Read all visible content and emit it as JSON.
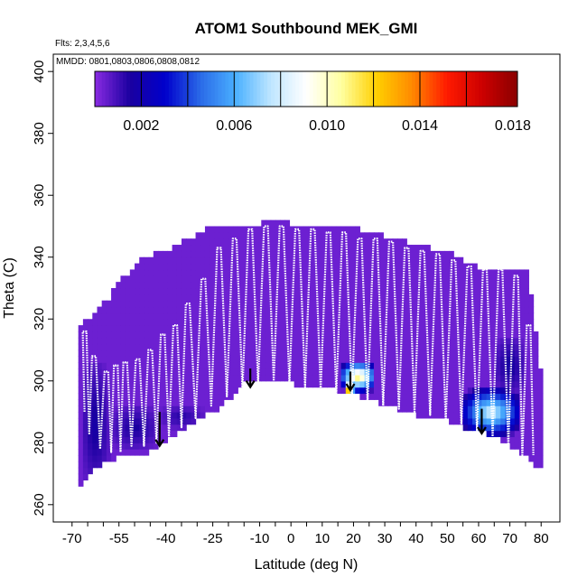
{
  "chart_data": {
    "type": "heatmap",
    "title": "ATOM1 Southbound MEK_GMI",
    "notes": [
      "Flts: 2,3,4,5,6",
      "MMDD: 0801,0803,0806,0808,0812"
    ],
    "xlabel": "Latitude (deg N)",
    "ylabel": "Theta (C)",
    "xlim": [
      -70,
      80
    ],
    "ylim": [
      260,
      400
    ],
    "x_tick_labels": [
      "-70",
      "-55",
      "-40",
      "-25",
      "-10",
      "0",
      "10",
      "20",
      "30",
      "40",
      "50",
      "60",
      "70",
      "80"
    ],
    "x_tick_values": [
      -70,
      -55,
      -40,
      -25,
      -10,
      0,
      10,
      20,
      30,
      40,
      50,
      60,
      70,
      80
    ],
    "y_ticks": [
      260,
      280,
      300,
      320,
      340,
      360,
      380,
      400
    ],
    "colorbar": {
      "labels": [
        "0.002",
        "0.006",
        "0.010",
        "0.014",
        "0.018"
      ],
      "label_values": [
        0.002,
        0.006,
        0.01,
        0.014,
        0.018
      ],
      "range": [
        0.0,
        0.0182
      ],
      "stops": [
        "#8a2be2",
        "#1a00a0",
        "#0000cc",
        "#2a6ae8",
        "#4ab0ff",
        "#bfe6ff",
        "#ffffff",
        "#ffffa0",
        "#ffd000",
        "#ff8a00",
        "#ff1a00",
        "#cc0000",
        "#8a0000"
      ]
    },
    "background_value": 0.0004,
    "domain_top": [
      [
        -68,
        316
      ],
      [
        -66,
        318
      ],
      [
        -62,
        322
      ],
      [
        -58,
        326
      ],
      [
        -55,
        331
      ],
      [
        -50,
        336
      ],
      [
        -47,
        339
      ],
      [
        -44,
        340
      ],
      [
        -40,
        341
      ],
      [
        -36,
        343
      ],
      [
        -33,
        345
      ],
      [
        -25,
        349
      ],
      [
        -10,
        350
      ],
      [
        -5,
        351
      ],
      [
        0,
        350
      ],
      [
        10,
        349
      ],
      [
        22,
        348
      ],
      [
        30,
        346
      ],
      [
        40,
        343
      ],
      [
        50,
        341
      ],
      [
        55,
        338
      ],
      [
        60,
        336
      ],
      [
        70,
        335
      ],
      [
        76,
        334
      ],
      [
        80,
        300
      ],
      [
        80,
        290
      ]
    ],
    "domain_bottom": [
      [
        -68,
        265
      ],
      [
        -62,
        272
      ],
      [
        -55,
        276
      ],
      [
        -45,
        277
      ],
      [
        -38,
        282
      ],
      [
        -30,
        287
      ],
      [
        -22,
        292
      ],
      [
        -15,
        299
      ],
      [
        -5,
        301
      ],
      [
        5,
        298
      ],
      [
        15,
        297
      ],
      [
        22,
        295
      ],
      [
        30,
        292
      ],
      [
        40,
        289
      ],
      [
        50,
        287
      ],
      [
        58,
        284
      ],
      [
        63,
        283
      ],
      [
        68,
        280
      ],
      [
        74,
        276
      ],
      [
        78,
        273
      ],
      [
        80,
        272
      ]
    ],
    "enhanced_regions": [
      {
        "lat": [
          -67,
          -58
        ],
        "theta": [
          266,
          305
        ],
        "value": 0.0018
      },
      {
        "lat": [
          -58,
          -42
        ],
        "theta": [
          278,
          292
        ],
        "value": 0.0016
      },
      {
        "lat": [
          -42,
          -28
        ],
        "theta": [
          285,
          292
        ],
        "value": 0.0014
      },
      {
        "lat": [
          16,
          27
        ],
        "theta": [
          297,
          306
        ],
        "value": 0.0118
      },
      {
        "lat": [
          17,
          20
        ],
        "theta": [
          295,
          300
        ],
        "value": 0.015
      },
      {
        "lat": [
          55,
          73
        ],
        "theta": [
          283,
          297
        ],
        "value": 0.0085
      },
      {
        "lat": [
          59,
          63
        ],
        "theta": [
          288,
          292
        ],
        "value": 0.011
      },
      {
        "lat": [
          65,
          75
        ],
        "theta": [
          296,
          314
        ],
        "value": 0.0018
      }
    ],
    "profiles": [
      {
        "lat": -66,
        "low": 290,
        "high": 316
      },
      {
        "lat": -63,
        "low": 283,
        "high": 308
      },
      {
        "lat": -59,
        "low": 278,
        "high": 303
      },
      {
        "lat": -56,
        "low": 277,
        "high": 305
      },
      {
        "lat": -53,
        "low": 279,
        "high": 306
      },
      {
        "lat": -49,
        "low": 279,
        "high": 307
      },
      {
        "lat": -45,
        "low": 280,
        "high": 310
      },
      {
        "lat": -41,
        "low": 282,
        "high": 315
      },
      {
        "lat": -37,
        "low": 285,
        "high": 318
      },
      {
        "lat": -33,
        "low": 288,
        "high": 325
      },
      {
        "lat": -28,
        "low": 292,
        "high": 333
      },
      {
        "lat": -23,
        "low": 295,
        "high": 343
      },
      {
        "lat": -18,
        "low": 297,
        "high": 346
      },
      {
        "lat": -13,
        "low": 299,
        "high": 349
      },
      {
        "lat": -8,
        "low": 300,
        "high": 350
      },
      {
        "lat": -3,
        "low": 300,
        "high": 350
      },
      {
        "lat": 2,
        "low": 299,
        "high": 349
      },
      {
        "lat": 7,
        "low": 298,
        "high": 349
      },
      {
        "lat": 12,
        "low": 297,
        "high": 348
      },
      {
        "lat": 17,
        "low": 296,
        "high": 348
      },
      {
        "lat": 22,
        "low": 295,
        "high": 346
      },
      {
        "lat": 27,
        "low": 293,
        "high": 346
      },
      {
        "lat": 32,
        "low": 292,
        "high": 345
      },
      {
        "lat": 37,
        "low": 291,
        "high": 343
      },
      {
        "lat": 42,
        "low": 290,
        "high": 342
      },
      {
        "lat": 47,
        "low": 289,
        "high": 341
      },
      {
        "lat": 52,
        "low": 287,
        "high": 339
      },
      {
        "lat": 57,
        "low": 286,
        "high": 337
      },
      {
        "lat": 62,
        "low": 284,
        "high": 336
      },
      {
        "lat": 67,
        "low": 282,
        "high": 336
      },
      {
        "lat": 72,
        "low": 279,
        "high": 334
      },
      {
        "lat": 76,
        "low": 276,
        "high": 318
      }
    ],
    "arrows": [
      {
        "lat": -42,
        "theta_from": 290,
        "theta_to": 279
      },
      {
        "lat": -13,
        "theta_from": 304,
        "theta_to": 298
      },
      {
        "lat": 19,
        "theta_from": 303,
        "theta_to": 297
      },
      {
        "lat": 61,
        "theta_from": 291,
        "theta_to": 283
      }
    ]
  }
}
